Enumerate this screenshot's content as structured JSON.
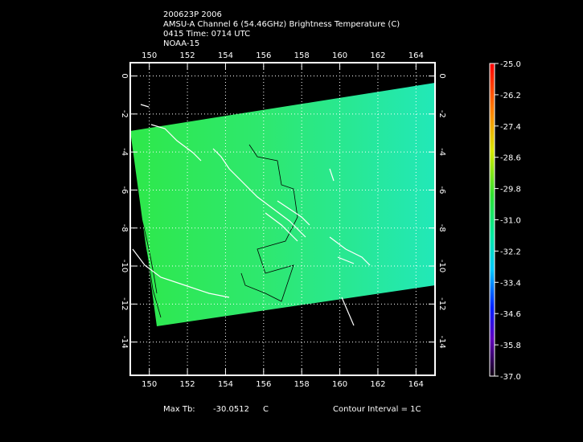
{
  "header": {
    "lines": [
      "200623P 2006",
      "AMSU-A Channel 6 (54.46GHz) Brightness Temperature (C)",
      "0415 Time: 0714 UTC",
      "NOAA-15"
    ]
  },
  "map": {
    "xlim": [
      149,
      165
    ],
    "ylim": [
      -15.75,
      0.7
    ],
    "xticks": [
      150,
      152,
      154,
      156,
      158,
      160,
      162,
      164
    ],
    "yticks": [
      0,
      -2,
      -4,
      -6,
      -8,
      -10,
      -12,
      -14
    ]
  },
  "colorbar": {
    "ticks": [
      {
        "value": -25,
        "label": "-25.0"
      },
      -26.2,
      -27.4,
      -28.6,
      -29.8,
      {
        "value": -31,
        "label": "-31.0"
      },
      -32.2,
      -33.4,
      -34.6,
      -35.8,
      {
        "value": -37,
        "label": "-37.0"
      }
    ]
  },
  "footer": {
    "max_label": "Max Tb:",
    "max_value": "-30.0512",
    "max_unit": "C",
    "contour": "Contour Interval = 1C"
  }
}
